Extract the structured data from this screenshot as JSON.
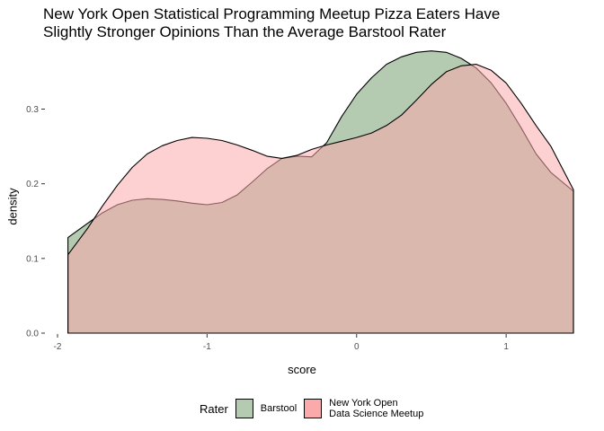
{
  "chart_data": {
    "type": "area",
    "title": "New York Open Statistical Programming Meetup Pizza Eaters Have\nSlightly Stronger Opinions Than the Average Barstool Rater",
    "title_lines": [
      "New York Open Statistical Programming Meetup Pizza Eaters Have",
      "Slightly Stronger Opinions Than the Average Barstool Rater"
    ],
    "xlabel": "score",
    "ylabel": "density",
    "xlim": [
      -2.0,
      1.45
    ],
    "ylim": [
      0.0,
      0.38
    ],
    "x_ticks": [
      -2,
      -1,
      0,
      1
    ],
    "x_tick_labels": [
      "-2",
      "-1",
      "0",
      "1"
    ],
    "y_ticks": [
      0.0,
      0.1,
      0.2,
      0.3
    ],
    "y_tick_labels": [
      "0.0",
      "0.1",
      "0.2",
      "0.3"
    ],
    "grid": false,
    "legend": {
      "title": "Rater",
      "position": "bottom",
      "entries": [
        "Barstool",
        "New York Open\nData Science Meetup"
      ]
    },
    "series": [
      {
        "name": "Barstool",
        "fill": "#b4cbb2",
        "x": [
          -1.93,
          -1.8,
          -1.7,
          -1.6,
          -1.5,
          -1.4,
          -1.3,
          -1.2,
          -1.1,
          -1.0,
          -0.9,
          -0.8,
          -0.7,
          -0.6,
          -0.5,
          -0.4,
          -0.3,
          -0.2,
          -0.1,
          0.0,
          0.1,
          0.2,
          0.3,
          0.4,
          0.5,
          0.6,
          0.7,
          0.8,
          0.9,
          1.0,
          1.1,
          1.2,
          1.3,
          1.45
        ],
        "y": [
          0.128,
          0.147,
          0.161,
          0.172,
          0.178,
          0.18,
          0.179,
          0.177,
          0.174,
          0.172,
          0.175,
          0.185,
          0.202,
          0.22,
          0.234,
          0.237,
          0.236,
          0.255,
          0.29,
          0.32,
          0.342,
          0.36,
          0.37,
          0.376,
          0.378,
          0.376,
          0.368,
          0.355,
          0.335,
          0.308,
          0.275,
          0.24,
          0.215,
          0.19
        ]
      },
      {
        "name": "New York Open\nData Science Meetup",
        "fill": "#fbaaac",
        "x": [
          -1.93,
          -1.8,
          -1.7,
          -1.6,
          -1.5,
          -1.4,
          -1.3,
          -1.2,
          -1.1,
          -1.0,
          -0.9,
          -0.8,
          -0.7,
          -0.6,
          -0.5,
          -0.4,
          -0.3,
          -0.2,
          -0.1,
          0.0,
          0.1,
          0.2,
          0.3,
          0.4,
          0.5,
          0.6,
          0.7,
          0.8,
          0.9,
          1.0,
          1.1,
          1.2,
          1.3,
          1.45
        ],
        "y": [
          0.105,
          0.14,
          0.17,
          0.198,
          0.222,
          0.24,
          0.251,
          0.258,
          0.262,
          0.261,
          0.258,
          0.252,
          0.245,
          0.237,
          0.234,
          0.238,
          0.246,
          0.252,
          0.257,
          0.262,
          0.268,
          0.278,
          0.292,
          0.312,
          0.333,
          0.35,
          0.358,
          0.36,
          0.352,
          0.335,
          0.308,
          0.278,
          0.25,
          0.192
        ]
      }
    ],
    "overlap_color": "#cc8f80",
    "outline_color": "#000000"
  }
}
